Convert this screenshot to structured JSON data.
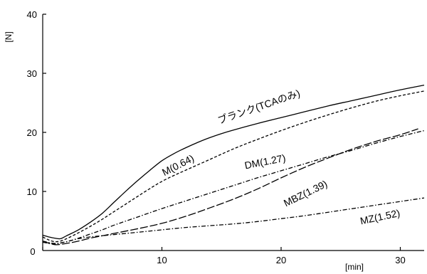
{
  "chart_data": {
    "type": "line",
    "title": "",
    "xlabel": "[min]",
    "ylabel": "[N]",
    "xlim": [
      0,
      32
    ],
    "ylim": [
      0,
      40
    ],
    "x_ticks": [
      0,
      10,
      20,
      30
    ],
    "y_ticks": [
      10,
      20,
      30,
      40
    ],
    "origin_label": "0",
    "grid": false,
    "legend": "none (series labelled inline)",
    "series": [
      {
        "name": "ブランク(TCAのみ)",
        "line_style": "solid",
        "x": [
          0,
          0.5,
          1,
          1.5,
          2,
          3,
          4,
          5,
          6,
          7,
          8,
          9,
          10,
          11,
          12,
          13,
          14,
          15,
          16,
          18,
          20,
          22,
          24,
          26,
          28,
          30,
          32
        ],
        "y": [
          2.6,
          2.3,
          2.1,
          2.0,
          2.5,
          3.5,
          4.8,
          6.3,
          8.2,
          10.1,
          11.9,
          13.6,
          15.2,
          16.4,
          17.4,
          18.3,
          19.1,
          19.8,
          20.4,
          21.5,
          22.5,
          23.5,
          24.5,
          25.4,
          26.3,
          27.2,
          28.0
        ]
      },
      {
        "name": "M(0.64)",
        "line_style": "dashed",
        "x": [
          0,
          0.5,
          1,
          1.5,
          2,
          3,
          4,
          5,
          6,
          7,
          8,
          9,
          10,
          11,
          12,
          14,
          16,
          18,
          20,
          22,
          24,
          26,
          28,
          30,
          32
        ],
        "y": [
          2.3,
          1.8,
          1.5,
          1.6,
          2.0,
          3.0,
          4.1,
          5.3,
          6.6,
          7.9,
          9.2,
          10.5,
          11.7,
          12.7,
          13.6,
          15.4,
          17.2,
          18.8,
          20.3,
          21.7,
          23.0,
          24.2,
          25.3,
          26.2,
          27.0
        ]
      },
      {
        "name": "DM(1.27)",
        "line_style": "dash-dot",
        "x": [
          0,
          1,
          2,
          3,
          4,
          5,
          6,
          8,
          10,
          12,
          14,
          16,
          18,
          20,
          22,
          24,
          26,
          28,
          30,
          32
        ],
        "y": [
          1.6,
          1.2,
          1.5,
          2.1,
          2.8,
          3.5,
          4.3,
          5.7,
          7.1,
          8.4,
          9.7,
          11.0,
          12.3,
          13.5,
          14.7,
          15.9,
          17.0,
          18.2,
          19.3,
          20.3
        ]
      },
      {
        "name": "MBZ(1.39)",
        "line_style": "long-dash",
        "x": [
          0,
          1,
          2,
          3,
          4,
          5,
          6,
          8,
          10,
          12,
          14,
          16,
          18,
          20,
          22,
          24,
          26,
          28,
          30,
          31.5
        ],
        "y": [
          1.6,
          1.0,
          1.2,
          1.6,
          2.1,
          2.5,
          2.9,
          3.7,
          4.6,
          5.8,
          7.2,
          8.7,
          10.4,
          12.3,
          14.1,
          15.7,
          17.2,
          18.5,
          19.6,
          20.6
        ]
      },
      {
        "name": "MZ(1.52)",
        "line_style": "dash-dot",
        "x": [
          0,
          1,
          2,
          3,
          4,
          6,
          8,
          10,
          12,
          14,
          16,
          18,
          20,
          22,
          24,
          26,
          28,
          30,
          32
        ],
        "y": [
          1.4,
          1.1,
          1.5,
          2.0,
          2.3,
          2.7,
          3.1,
          3.5,
          3.9,
          4.2,
          4.5,
          4.9,
          5.4,
          5.9,
          6.5,
          7.1,
          7.7,
          8.3,
          8.9
        ]
      }
    ]
  }
}
